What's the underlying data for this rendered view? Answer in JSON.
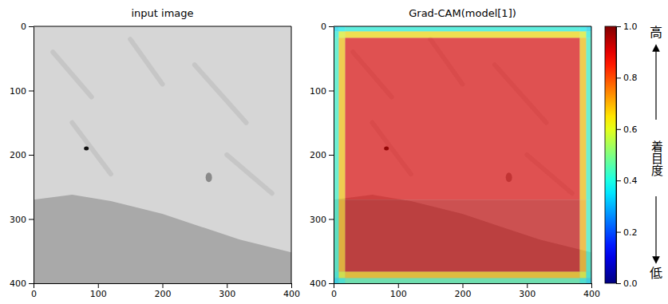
{
  "chart_data": [
    {
      "type": "image",
      "title": "input image",
      "xlim": [
        0,
        400
      ],
      "ylim": [
        400,
        0
      ],
      "xticks": [
        0,
        100,
        200,
        300,
        400
      ],
      "yticks": [
        0,
        100,
        200,
        300,
        400
      ]
    },
    {
      "type": "heatmap",
      "title": "Grad-CAM(model[1])",
      "xlim": [
        0,
        400
      ],
      "ylim": [
        400,
        0
      ],
      "xticks": [
        0,
        100,
        200,
        300,
        400
      ],
      "yticks": [
        0,
        100,
        200,
        300,
        400
      ],
      "x_edges": [
        0,
        8,
        18,
        382,
        392,
        400
      ],
      "y_edges": [
        0,
        8,
        18,
        270,
        382,
        392,
        400
      ],
      "cells": [
        [
          0.35,
          0.38,
          0.4,
          0.38,
          0.35
        ],
        [
          0.4,
          0.6,
          0.65,
          0.6,
          0.4
        ],
        [
          0.42,
          0.68,
          0.9,
          0.68,
          0.42
        ],
        [
          0.42,
          0.7,
          0.93,
          0.7,
          0.42
        ],
        [
          0.4,
          0.6,
          0.68,
          0.6,
          0.4
        ],
        [
          0.35,
          0.4,
          0.45,
          0.4,
          0.35
        ]
      ],
      "colorbar": {
        "range": [
          0,
          1
        ],
        "ticks": [
          {
            "value": 0,
            "label": "0.0"
          },
          {
            "value": 0.2,
            "label": "0.2"
          },
          {
            "value": 0.4,
            "label": "0.4"
          },
          {
            "value": 0.6,
            "label": "0.6"
          },
          {
            "value": 0.8,
            "label": "0.8"
          },
          {
            "value": 1,
            "label": "1.0"
          }
        ],
        "label": "着目度",
        "label_high": "高",
        "label_low": "低"
      }
    }
  ]
}
